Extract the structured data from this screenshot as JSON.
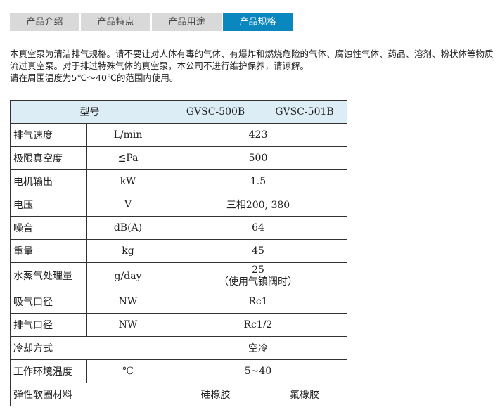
{
  "tabs": [
    {
      "label": "产品介绍"
    },
    {
      "label": "产品特点"
    },
    {
      "label": "产品用途"
    },
    {
      "label": "产品规格",
      "active": true
    }
  ],
  "description": [
    "本真空泵为清洁排气规格。请不要让对人体有毒的气体、有爆炸和燃烧危险的气体、腐蚀性气体、药品、溶剂、粉状体等物质流过真空泵。对于排过特殊气体的真空泵，本公司不进行维护保养，请谅解。",
    "请在周围温度为5℃～40℃的范围内使用。"
  ],
  "table": {
    "header": {
      "label": "型号",
      "models": [
        "GVSC-500B",
        "GVSC-501B"
      ]
    },
    "rows": [
      {
        "name": "排气速度",
        "unit": "L/min",
        "value": "423"
      },
      {
        "name": "极限真空度",
        "unit": "≦Pa",
        "value": "500"
      },
      {
        "name": "电机输出",
        "unit": "kW",
        "value": "1.5"
      },
      {
        "name": "电压",
        "unit": "V",
        "value": "三相200, 380"
      },
      {
        "name": "噪音",
        "unit": "dB(A)",
        "value": "64"
      },
      {
        "name": "重量",
        "unit": "kg",
        "value": "45"
      },
      {
        "name": "水蒸气处理量",
        "unit": "g/day",
        "value": "25",
        "note": "（使用气镇阀时）"
      },
      {
        "name": "吸气口径",
        "unit": "NW",
        "value": "Rc1"
      },
      {
        "name": "排气口径",
        "unit": "NW",
        "value": "Rc1/2"
      },
      {
        "name": "冷却方式",
        "unit": "",
        "value": "空冷"
      },
      {
        "name": "工作环境温度",
        "unit": "℃",
        "value": "5~40"
      }
    ],
    "last": {
      "name": "弹性软圈材料",
      "values": [
        "硅橡胶",
        "氟橡胶"
      ]
    }
  },
  "colors": {
    "active_tab": "#0a87bf",
    "header_bg": "#dcedf6"
  }
}
